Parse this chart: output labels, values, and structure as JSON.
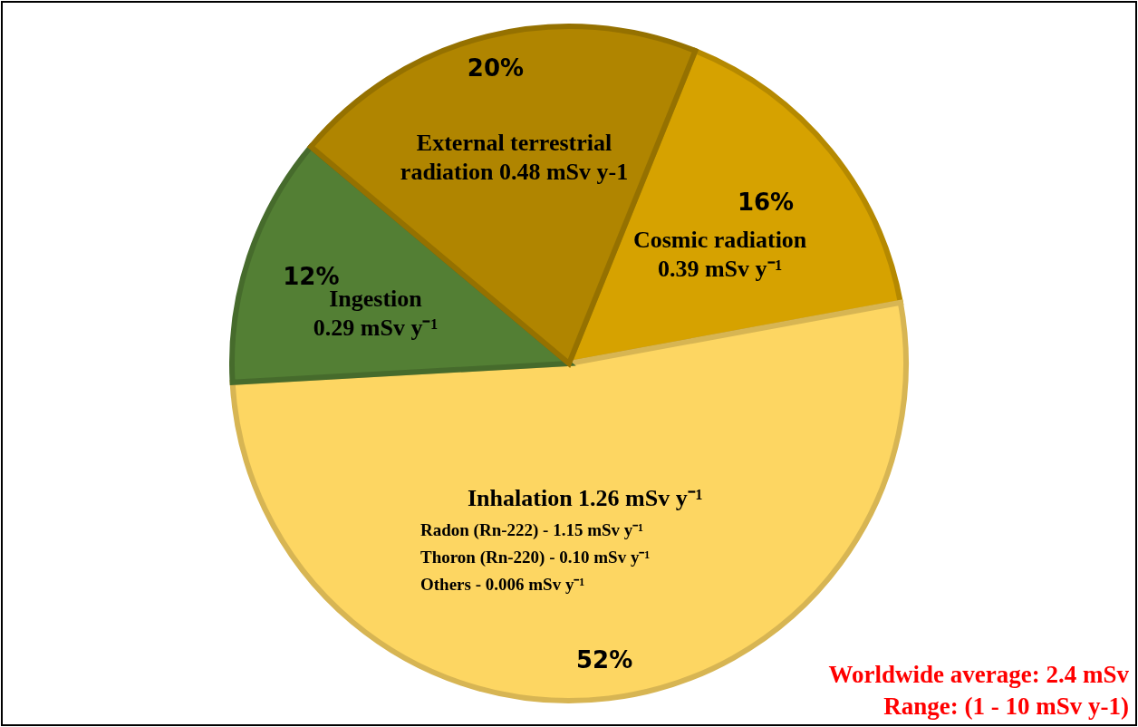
{
  "chart_data": {
    "type": "pie",
    "categories": [
      "Cosmic radiation\n0.39 mSv y⁻¹",
      "Inhalation 1.26 mSv y⁻¹",
      "Ingestion\n0.29 mSv y⁻¹",
      "External terrestrial\nradiation 0.48 mSv y-1"
    ],
    "values": [
      16,
      52,
      12,
      20
    ],
    "colors": [
      "#d6a200",
      "#fdd662",
      "#537f34",
      "#b08500"
    ],
    "value_labels": [
      "16%",
      "52%",
      "12%",
      "20%"
    ],
    "annotations": [
      "Radon (Rn-222) - 1.15 mSv y⁻¹",
      "Thoron (Rn-220) - 0.10 mSv y⁻¹",
      "Others - 0.006 mSv y⁻¹",
      "Worldwide  average: 2.4 mSv",
      "Range: (1 - 10 mSv y-1)"
    ]
  }
}
